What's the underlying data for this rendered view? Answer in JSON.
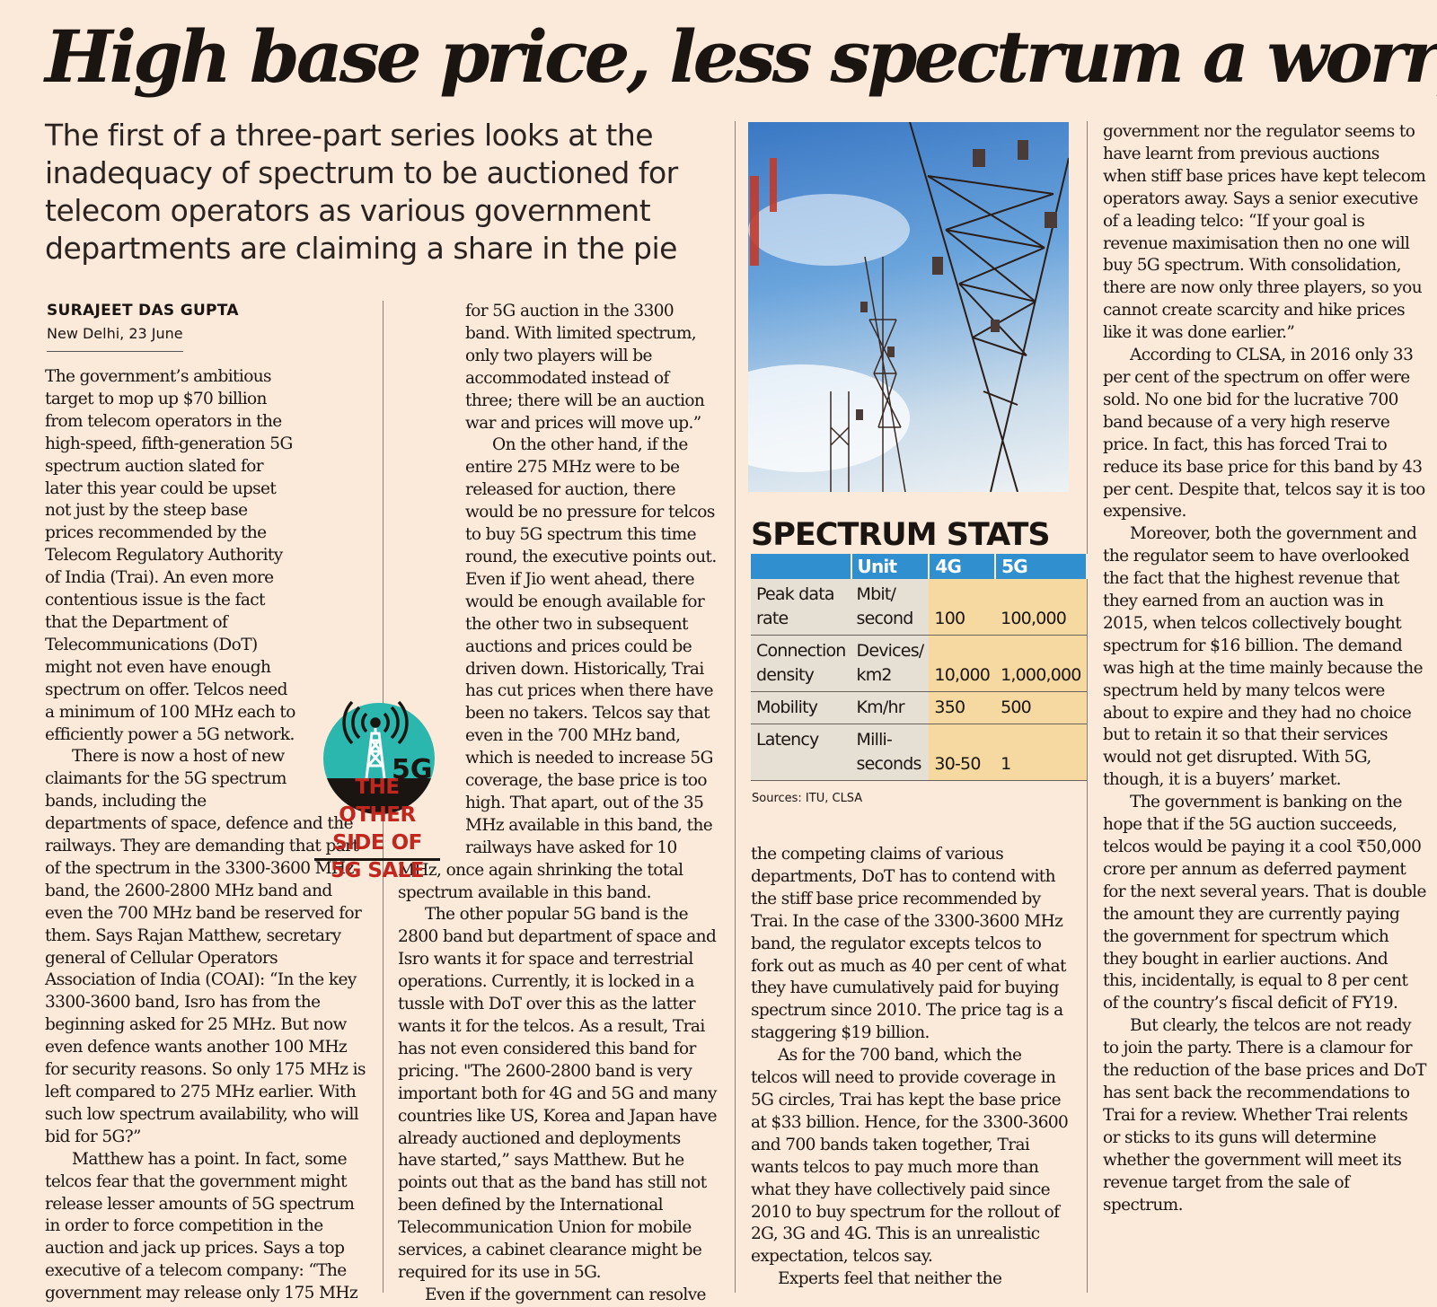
{
  "headline": "High base price, less spectrum a worry",
  "deck": "The first of a three-part series looks at the inadequacy of spectrum to be auctioned for telecom operators as various government departments are claiming a share in the pie",
  "byline": "SURAJEET DAS GUPTA",
  "dateline": "New Delhi, 23 June",
  "columns": {
    "c1": [
      "The government’s ambitious target to mop up $70 billion from telecom operators in the high-speed, fifth-generation 5G spectrum auction slated for later this year could be upset not just by the steep base prices recommended by the Telecom Regulatory Authority of India (Trai). An even more contentious issue is the fact that the Department of Telecommunications (DoT) might not even have enough spectrum on offer. Telcos need a minimum of 100 MHz each to efficiently power a 5G network.",
      "There is now a host of new claimants for the 5G spectrum bands, including the departments of space, defence and the railways. They are demanding that part of the spectrum in the 3300-3600 MHz band, the 2600-2800 MHz band and even the 700 MHz band be reserved for them. Says Rajan Matthew, secretary general of Cellular Operators Association of India (COAI): “In the key 3300-3600 band, Isro has from the beginning asked for 25 MHz. But now even defence wants another 100 MHz for security reasons. So only 175 MHz is left compared to 275 MHz earlier. With such low spectrum availability, who will bid for 5G?”",
      "Matthew has a point. In fact, some telcos fear that the government might release lesser amounts of 5G spectrum in order to force competition in the auction and jack up prices. Says a top executive of a telecom company: “The government may release only 175 MHz"
    ],
    "c2": [
      "for 5G auction in the 3300 band. With limited spectrum, only two players will be accommodated instead of three; there will be an auction war and prices will move up.”",
      "On the other hand, if the entire 275 MHz were to be released for auction, there would be no pressure for telcos to buy 5G spectrum this time round, the executive points out. Even if Jio went ahead, there would be enough available for the other two in subsequent auctions and prices could be driven down. Historically, Trai has cut prices when there have been no takers. Telcos say that even in the 700 MHz band, which is needed to increase 5G coverage, the base price is too high. That apart, out of the 35 MHz available in this band, the railways have asked for 10 MHz, once again shrinking the total spectrum available in this band.",
      "The other popular 5G band is the 2800 band but department of space and Isro wants it for space and terrestrial operations. Currently, it is locked in a tussle with DoT over this as the latter wants it for the telcos. As a result, Trai has not even considered this band for pricing. \"The 2600-2800 band is very important both for 4G and 5G and many countries like US, Korea and Japan have already auctioned and deployments have started,” says Matthew. But he points out that as the band has still not been defined by the International Telecommunication Union for mobile services, a cabinet clearance might be required for its use in 5G.",
      "Even if the government can resolve"
    ],
    "c3": [
      "the competing claims of various departments, DoT has to contend with the stiff base price recommended by Trai. In the case of the 3300-3600 MHz band, the regulator excepts telcos to fork out as much as 40 per cent of what they have cumulatively paid for buying spectrum since 2010. The price tag is a staggering $19 billion.",
      "As for the 700 band, which the telcos will need to provide coverage in 5G circles, Trai has kept the base price at $33 billion. Hence, for the 3300-3600 and 700 bands taken together, Trai wants telcos to pay much more than what they have collectively paid since 2010 to buy spectrum for the rollout of 2G, 3G and 4G. This is an unrealistic expectation, telcos say.",
      "Experts feel that neither the"
    ],
    "c4": [
      "government nor the regulator seems to have learnt from previous auctions when stiff base prices have kept telecom operators away. Says a senior executive of a leading telco: “If your goal is revenue maximisation then no one will buy 5G spectrum. With consolidation, there are now only three players, so you cannot create scarcity and hike prices like it was done earlier.”",
      "According to CLSA, in 2016 only 33 per cent of the spectrum on offer were sold. No one bid for the lucrative 700 band because of a very high reserve price. In fact, this has forced Trai to reduce its base price for this band by 43 per cent. Despite that, telcos say it is too expensive.",
      "Moreover, both the government and the regulator seem to have overlooked the fact that the highest revenue that they earned from an auction was in 2015, when telcos collectively bought spectrum for $16 billion. The demand was high at the time mainly because the spectrum held by many telcos were about to expire and they had no choice but to retain it so that their services would not get disrupted. With 5G, though, it is a buyers’ market.",
      "The government is banking on the hope that if the 5G auction succeeds, telcos would be paying it a cool ₹50,000 crore per annum as deferred payment for the next several years. That is double the amount they are currently paying the government for spectrum which they bought in earlier auctions. And this, incidentally, is equal to 8 per cent of the country’s fiscal deficit of FY19.",
      "But clearly, the telcos are not ready to join the party. There is a clamour for the reduction of the base prices and DoT has sent back the recommendations to Trai for a review. Whether Trai relents or sticks to its guns will determine whether the government will meet its revenue target from the sale of spectrum."
    ]
  },
  "logo": {
    "label": "5G",
    "tagline": [
      "THE OTHER",
      "SIDE OF",
      "5G SALE"
    ],
    "circle_color": "#2bb7ad",
    "accent_color": "#c0271f"
  },
  "stats": {
    "title": "SPECTRUM STATS",
    "headers": [
      "",
      "Unit",
      "4G",
      "5G"
    ],
    "rows": [
      {
        "metric": "Peak data rate",
        "unit": "Mbit/ second",
        "g4": "100",
        "g5": "100,000"
      },
      {
        "metric": "Connection density",
        "unit": "Devices/ km2",
        "g4": "10,000",
        "g5": "1,000,000"
      },
      {
        "metric": "Mobility",
        "unit": "Km/hr",
        "g4": "350",
        "g5": "500"
      },
      {
        "metric": "Latency",
        "unit": "Milli- seconds",
        "g4": "30-50",
        "g5": "1"
      }
    ],
    "sources": "Sources: ITU, CLSA",
    "header_color": "#2f8fcf",
    "value_bg": "#f5d9a0"
  }
}
